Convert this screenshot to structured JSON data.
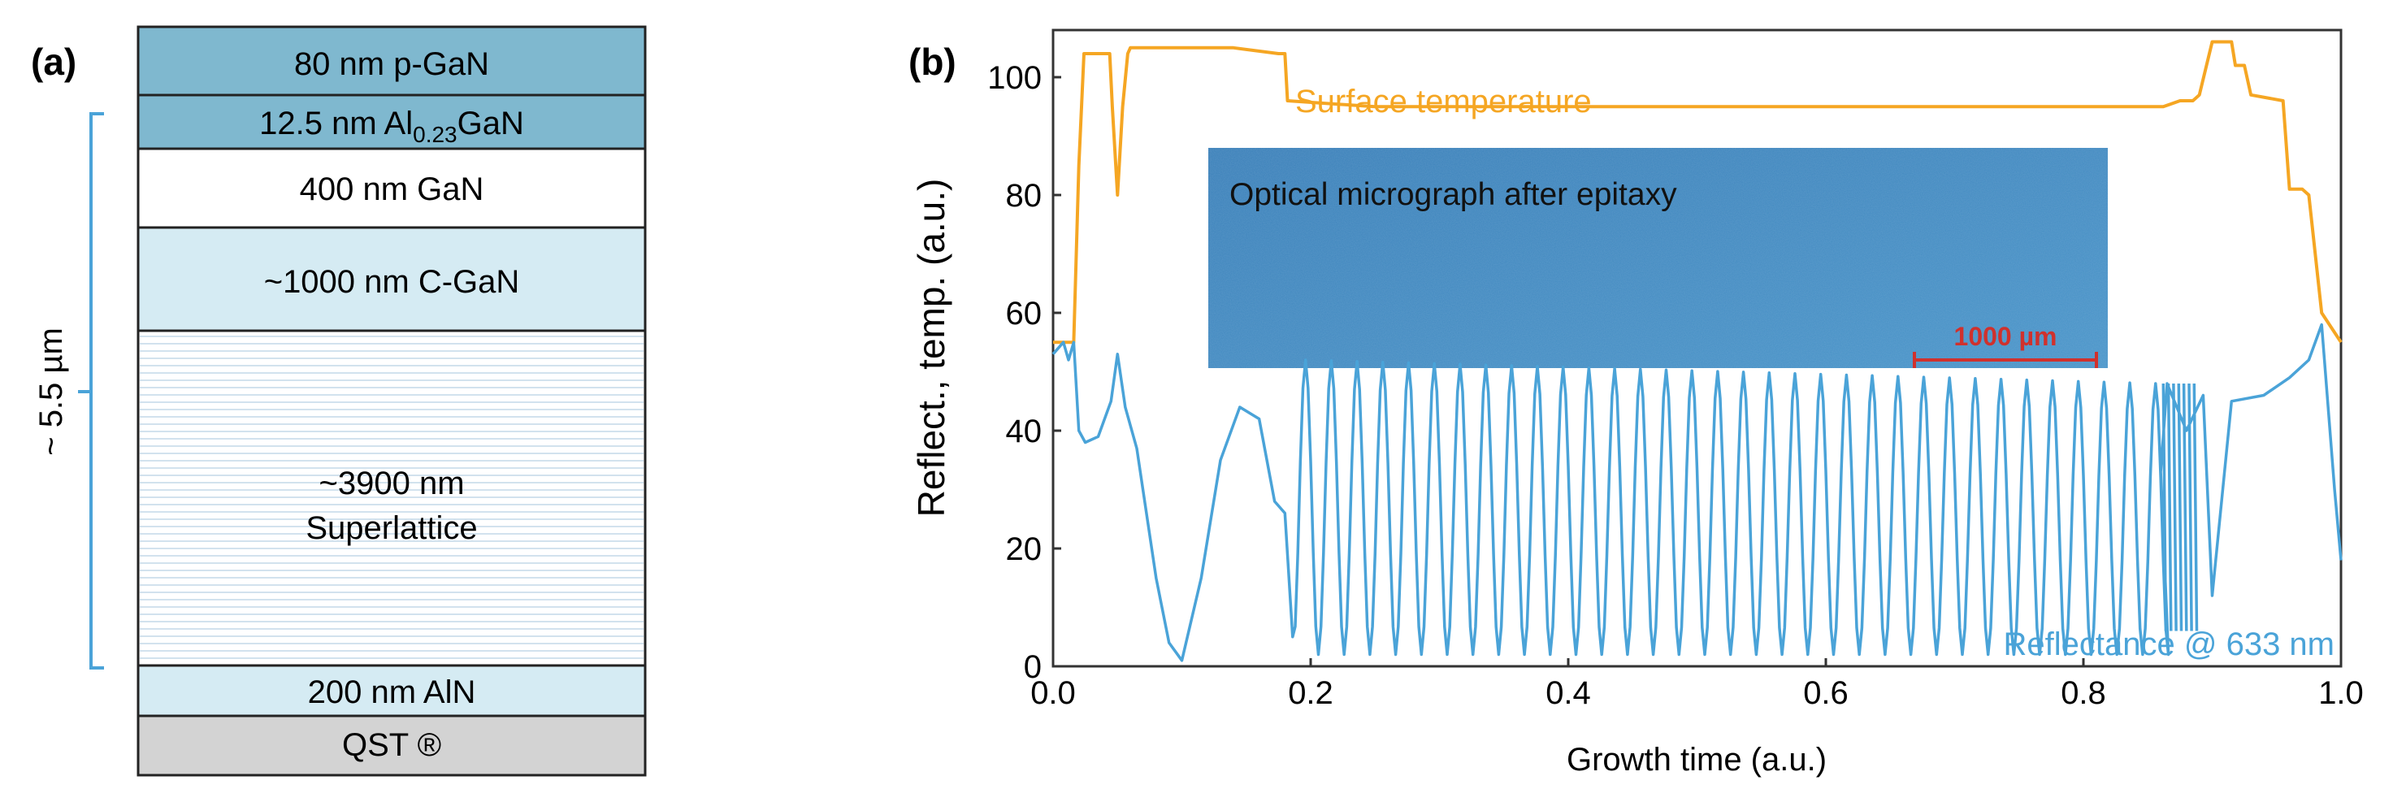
{
  "panel_a": {
    "label": "(a)",
    "bracket_label": "~ 5.5 µm",
    "layers": [
      {
        "text": "80 nm p-GaN",
        "fill": "#7fb8cf"
      },
      {
        "text_pre": "12.5 nm Al",
        "text_sub": "0.23",
        "text_post": "GaN",
        "fill": "#7fb8cf"
      },
      {
        "text": "400 nm GaN",
        "fill": "#ffffff"
      },
      {
        "text": "~1000 nm C-GaN",
        "fill": "#d5ebf3"
      },
      {
        "text": "~3900 nm",
        "text2": "Superlattice",
        "fill": "#ffffff"
      },
      {
        "text": "200 nm AlN",
        "fill": "#d5ebf3"
      },
      {
        "text": "QST ®",
        "fill": "#d3d3d3"
      }
    ]
  },
  "panel_b": {
    "label": "(b)",
    "inset_title": "Optical micrograph after epitaxy",
    "scale_bar": "1000 µm"
  },
  "colors": {
    "temperature": "#f5a623",
    "reflectance": "#4aa3d8",
    "inset": "#3b86c0",
    "scale_bar": "#d0312d"
  },
  "chart_data": {
    "type": "line",
    "title": "",
    "xlabel": "Growth time (a.u.)",
    "ylabel": "Reflect., temp. (a.u.)",
    "xlim": [
      0.0,
      1.0
    ],
    "ylim": [
      0,
      108
    ],
    "xticks": [
      "0.0",
      "0.2",
      "0.4",
      "0.6",
      "0.8",
      "1.0"
    ],
    "yticks": [
      "0",
      "20",
      "40",
      "60",
      "80",
      "100"
    ],
    "series": [
      {
        "name": "Surface temperature",
        "x": [
          0.0,
          0.016,
          0.02,
          0.024,
          0.036,
          0.04,
          0.044,
          0.046,
          0.05,
          0.054,
          0.058,
          0.06,
          0.1,
          0.14,
          0.175,
          0.18,
          0.182,
          0.25,
          0.35,
          0.45,
          0.55,
          0.65,
          0.75,
          0.85,
          0.862,
          0.875,
          0.885,
          0.89,
          0.9,
          0.915,
          0.918,
          0.925,
          0.93,
          0.955,
          0.96,
          0.965,
          0.97,
          0.975,
          0.985,
          1.0
        ],
        "values": [
          55,
          55,
          85,
          104,
          104,
          104,
          104,
          95,
          80,
          95,
          104,
          105,
          105,
          105,
          104,
          104,
          96,
          95,
          95,
          95,
          95,
          95,
          95,
          95,
          95,
          96,
          96,
          97,
          106,
          106,
          102,
          102,
          97,
          96,
          81,
          81,
          81,
          80,
          60,
          55
        ]
      },
      {
        "name": "Reflectance @ 633 nm",
        "x": [
          0.0,
          0.008,
          0.012,
          0.016,
          0.02,
          0.025,
          0.035,
          0.045,
          0.05,
          0.056,
          0.065,
          0.08,
          0.09,
          0.1,
          0.115,
          0.13,
          0.145,
          0.16,
          0.172,
          0.18,
          0.186
        ],
        "values": [
          53,
          55,
          52,
          55,
          40,
          38,
          39,
          45,
          53,
          44,
          37,
          15,
          4,
          1,
          15,
          35,
          44,
          42,
          28,
          26,
          5
        ],
        "oscillation": {
          "x_start": 0.186,
          "x_end": 0.86,
          "period": 0.02,
          "high_start": 52,
          "high_end": 48,
          "low_start": 2,
          "low_end": 2
        },
        "tail": {
          "x": [
            0.86,
            0.865,
            0.88,
            0.893,
            0.9,
            0.915,
            0.94,
            0.96,
            0.975,
            0.985,
            0.995,
            1.0
          ],
          "values": [
            33,
            48,
            40,
            46,
            12,
            45,
            46,
            49,
            52,
            58,
            30,
            18
          ]
        }
      }
    ],
    "annotations": [
      "Surface temperature",
      "Reflectance @ 633 nm"
    ]
  }
}
